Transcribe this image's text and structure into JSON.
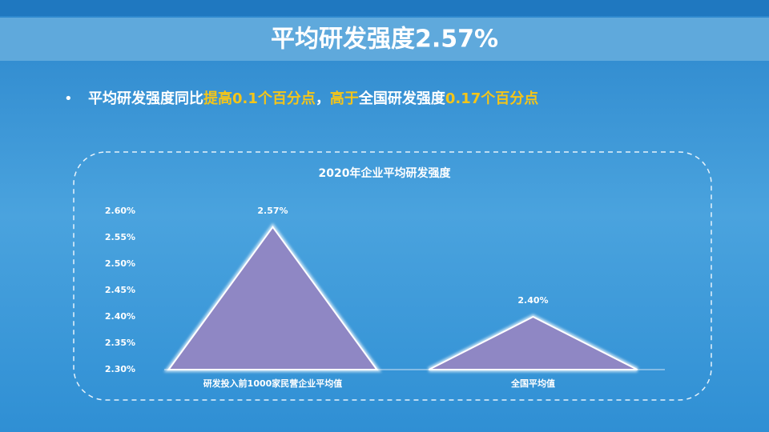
{
  "slide": {
    "title": "平均研发强度2.57%",
    "bullet": [
      {
        "text": "平均研发强度同比",
        "color": "#ffffff"
      },
      {
        "text": "提高0.1个百分点",
        "color": "#f5c518"
      },
      {
        "text": "，",
        "color": "#ffffff"
      },
      {
        "text": "高于",
        "color": "#f5c518"
      },
      {
        "text": "全国研发强度",
        "color": "#ffffff"
      },
      {
        "text": "0.17个百分点",
        "color": "#f5c518"
      }
    ]
  },
  "chart_data": {
    "type": "bar",
    "shape": "triangle",
    "title": "2020年企业平均研发强度",
    "categories": [
      "研发投入前1000家民营企业平均值",
      "全国平均值"
    ],
    "values": [
      2.57,
      2.4
    ],
    "value_labels": [
      "2.57%",
      "2.40%"
    ],
    "color": "#8f87c4",
    "ylim": [
      2.3,
      2.6
    ],
    "yticks": [
      {
        "value": 2.3,
        "label": "2.30%"
      },
      {
        "value": 2.35,
        "label": "2.35%"
      },
      {
        "value": 2.4,
        "label": "2.40%"
      },
      {
        "value": 2.45,
        "label": "2.45%"
      },
      {
        "value": 2.5,
        "label": "2.50%"
      },
      {
        "value": 2.55,
        "label": "2.55%"
      },
      {
        "value": 2.6,
        "label": "2.60%"
      }
    ],
    "grid": false
  }
}
